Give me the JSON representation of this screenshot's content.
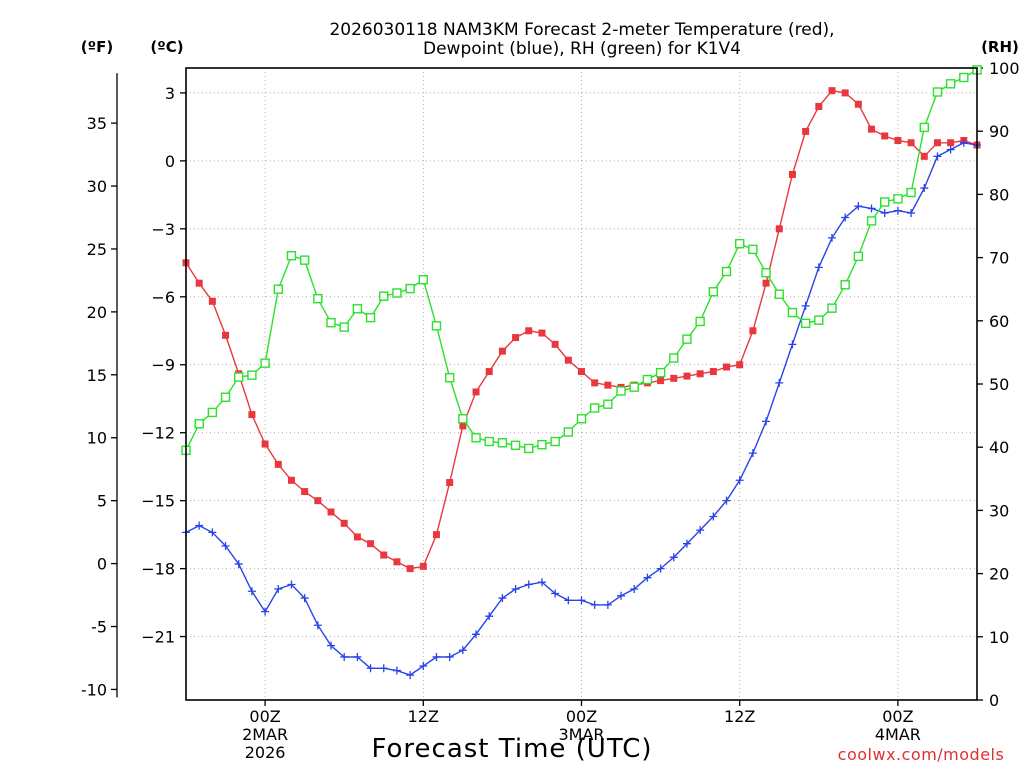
{
  "chart_data": {
    "type": "line",
    "title_lines": [
      "2026030118 NAM3KM Forecast 2-meter Temperature (red),",
      "Dewpoint (blue), RH (green) for K1V4"
    ],
    "units": {
      "left_outer": "(ºF)",
      "left_inner": "(ºC)",
      "right": "(RH)"
    },
    "xlabel": "Forecast Time (UTC)",
    "credit": "coolwx.com/models",
    "x_unit": "forecast hour",
    "xlim": [
      0,
      60
    ],
    "x_ticks": [
      {
        "x": 6,
        "lines": [
          "00Z",
          "2MAR",
          "2026"
        ]
      },
      {
        "x": 18,
        "lines": [
          "12Z"
        ]
      },
      {
        "x": 30,
        "lines": [
          "00Z",
          "3MAR"
        ]
      },
      {
        "x": 42,
        "lines": [
          "12Z"
        ]
      },
      {
        "x": 54,
        "lines": [
          "00Z",
          "4MAR"
        ]
      }
    ],
    "axes": {
      "celsius": {
        "ylim": [
          -23.8,
          4.1
        ],
        "ticks": [
          3,
          0,
          -3,
          -6,
          -9,
          -12,
          -15,
          -18,
          -21
        ]
      },
      "fahrenheit": {
        "ticks": [
          35,
          30,
          25,
          20,
          15,
          10,
          5,
          0,
          -5,
          -10
        ]
      },
      "rh": {
        "ylim": [
          0,
          100
        ],
        "ticks": [
          100,
          90,
          80,
          70,
          60,
          50,
          40,
          30,
          20,
          10,
          0
        ]
      }
    },
    "grid": true,
    "series": [
      {
        "name": "2-meter Temperature",
        "color": "#e8383d",
        "marker": "filled-square",
        "axis": "celsius",
        "x": [
          0,
          1,
          2,
          3,
          4,
          5,
          6,
          7,
          8,
          9,
          10,
          11,
          12,
          13,
          14,
          15,
          16,
          17,
          18,
          19,
          20,
          21,
          22,
          23,
          24,
          25,
          26,
          27,
          28,
          29,
          30,
          31,
          32,
          33,
          34,
          35,
          36,
          37,
          38,
          39,
          40,
          41,
          42,
          43,
          44,
          45,
          46,
          47,
          48,
          49,
          50,
          51,
          52,
          53,
          54,
          55,
          56,
          57,
          58,
          59,
          60
        ],
        "values": [
          -4.5,
          -5.4,
          -6.2,
          -7.7,
          -9.4,
          -11.2,
          -12.5,
          -13.4,
          -14.1,
          -14.6,
          -15.0,
          -15.5,
          -16.0,
          -16.6,
          -16.9,
          -17.4,
          -17.7,
          -18.0,
          -17.9,
          -16.5,
          -14.2,
          -11.7,
          -10.2,
          -9.3,
          -8.4,
          -7.8,
          -7.5,
          -7.6,
          -8.1,
          -8.8,
          -9.3,
          -9.8,
          -9.9,
          -10.0,
          -9.9,
          -9.8,
          -9.7,
          -9.6,
          -9.5,
          -9.4,
          -9.3,
          -9.1,
          -9.0,
          -7.5,
          -5.4,
          -3.0,
          -0.6,
          1.3,
          2.4,
          3.1,
          3.0,
          2.5,
          1.4,
          1.1,
          0.9,
          0.8,
          0.2,
          0.8,
          0.8,
          0.9,
          0.7
        ]
      },
      {
        "name": "Dewpoint",
        "color": "#2844e8",
        "marker": "plus",
        "axis": "celsius",
        "x": [
          0,
          1,
          2,
          3,
          4,
          5,
          6,
          7,
          8,
          9,
          10,
          11,
          12,
          13,
          14,
          15,
          16,
          17,
          18,
          19,
          20,
          21,
          22,
          23,
          24,
          25,
          26,
          27,
          28,
          29,
          30,
          31,
          32,
          33,
          34,
          35,
          36,
          37,
          38,
          39,
          40,
          41,
          42,
          43,
          44,
          45,
          46,
          47,
          48,
          49,
          50,
          51,
          52,
          53,
          54,
          55,
          56,
          57,
          58,
          59,
          60
        ],
        "values": [
          -16.4,
          -16.1,
          -16.4,
          -17.0,
          -17.8,
          -19.0,
          -19.9,
          -18.9,
          -18.7,
          -19.3,
          -20.5,
          -21.4,
          -21.9,
          -21.9,
          -22.4,
          -22.4,
          -22.5,
          -22.7,
          -22.3,
          -21.9,
          -21.9,
          -21.6,
          -20.9,
          -20.1,
          -19.3,
          -18.9,
          -18.7,
          -18.6,
          -19.1,
          -19.4,
          -19.4,
          -19.6,
          -19.6,
          -19.2,
          -18.9,
          -18.4,
          -18.0,
          -17.5,
          -16.9,
          -16.3,
          -15.7,
          -15.0,
          -14.1,
          -12.9,
          -11.5,
          -9.8,
          -8.1,
          -6.4,
          -4.7,
          -3.4,
          -2.5,
          -2.0,
          -2.1,
          -2.3,
          -2.2,
          -2.3,
          -1.2,
          0.2,
          0.5,
          0.8,
          0.7
        ]
      },
      {
        "name": "RH",
        "color": "#2ce02c",
        "marker": "open-square",
        "axis": "rh",
        "x": [
          0,
          1,
          2,
          3,
          4,
          5,
          6,
          7,
          8,
          9,
          10,
          11,
          12,
          13,
          14,
          15,
          16,
          17,
          18,
          19,
          20,
          21,
          22,
          23,
          24,
          25,
          26,
          27,
          28,
          29,
          30,
          31,
          32,
          33,
          34,
          35,
          36,
          37,
          38,
          39,
          40,
          41,
          42,
          43,
          44,
          45,
          46,
          47,
          48,
          49,
          50,
          51,
          52,
          53,
          54,
          55,
          56,
          57,
          58,
          59,
          60
        ],
        "values": [
          39.5,
          43.7,
          45.5,
          47.9,
          51.1,
          51.4,
          53.3,
          65.0,
          70.3,
          69.6,
          63.5,
          59.7,
          59.0,
          61.9,
          60.5,
          63.9,
          64.4,
          65.1,
          66.5,
          59.2,
          51.0,
          44.5,
          41.5,
          40.9,
          40.7,
          40.3,
          39.8,
          40.4,
          40.9,
          42.4,
          44.5,
          46.2,
          46.8,
          48.9,
          49.5,
          50.7,
          51.8,
          54.1,
          57.1,
          59.9,
          64.6,
          67.8,
          72.2,
          71.3,
          67.6,
          64.2,
          61.3,
          59.6,
          60.1,
          62.0,
          65.7,
          70.2,
          75.8,
          78.8,
          79.3,
          80.3,
          90.6,
          96.2,
          97.5,
          98.5,
          99.7
        ]
      }
    ]
  }
}
